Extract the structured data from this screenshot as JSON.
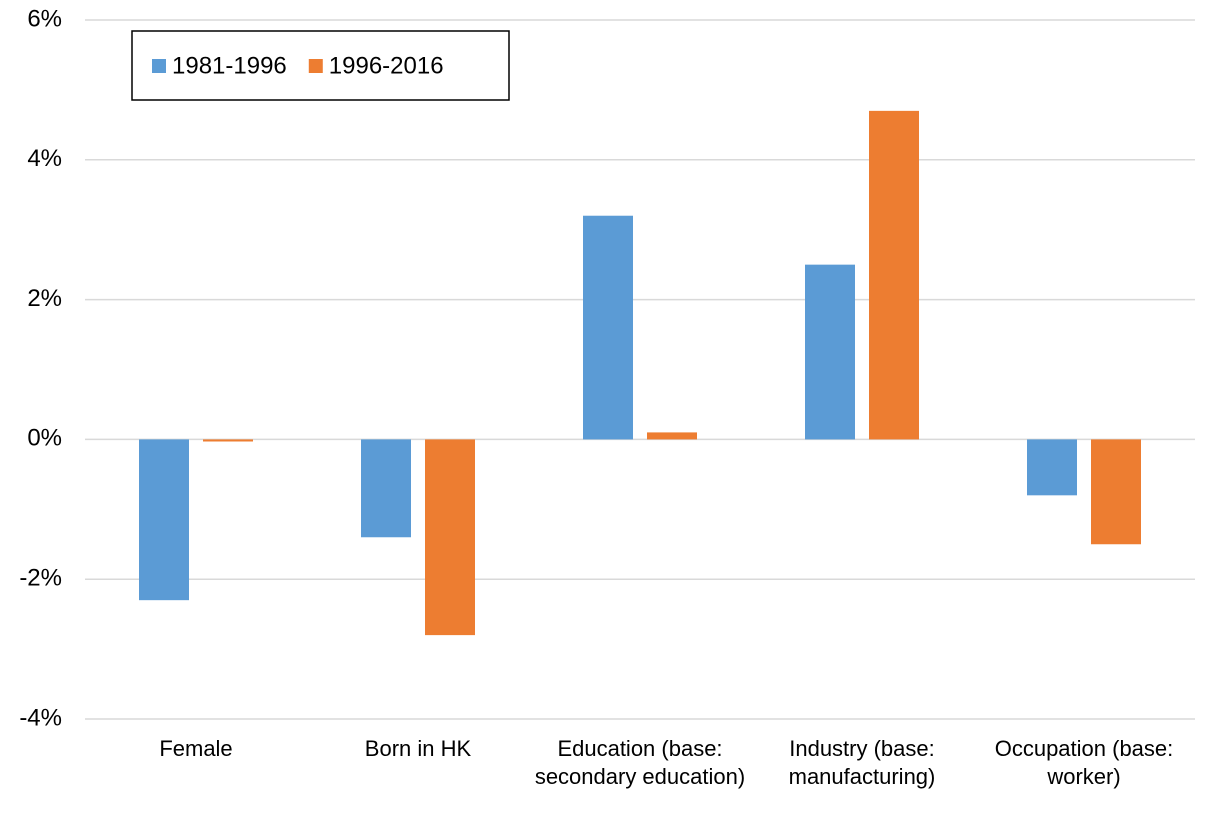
{
  "chart_data": {
    "type": "bar",
    "categories": [
      "Female",
      "Born in HK",
      "Education (base: secondary education)",
      "Industry (base: manufacturing)",
      "Occupation (base: worker)"
    ],
    "series": [
      {
        "name": "1981-1996",
        "color": "#5b9bd5",
        "values": [
          -2.3,
          -1.4,
          3.2,
          2.5,
          -0.8
        ]
      },
      {
        "name": "1996-2016",
        "color": "#ed7d31",
        "values": [
          -0.03,
          -2.8,
          0.1,
          4.7,
          -1.5
        ]
      }
    ],
    "ylim": [
      -4,
      6
    ],
    "yticks": [
      {
        "value": -4,
        "label": "-4%"
      },
      {
        "value": -2,
        "label": "-2%"
      },
      {
        "value": 0,
        "label": "0%"
      },
      {
        "value": 2,
        "label": "2%"
      },
      {
        "value": 4,
        "label": "4%"
      },
      {
        "value": 6,
        "label": "6%"
      }
    ],
    "grid": true,
    "legend": "upper left"
  }
}
